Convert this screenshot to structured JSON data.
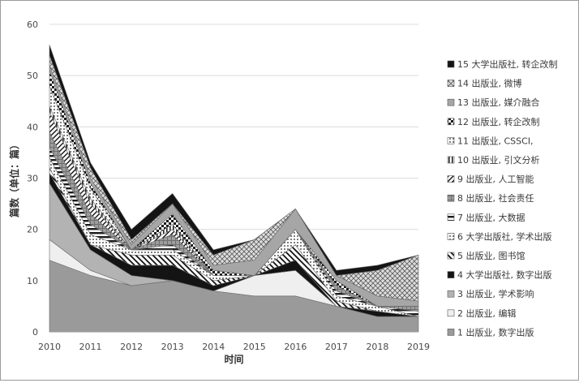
{
  "chart_data": {
    "type": "area",
    "stacked": true,
    "title": "",
    "xlabel": "时间",
    "ylabel": "篇数（单位：篇）",
    "x": [
      "2010",
      "2011",
      "2012",
      "2013",
      "2014",
      "2015",
      "2016",
      "2017",
      "2018",
      "2019"
    ],
    "ylim": [
      0,
      60
    ],
    "yticks": [
      "0",
      "10",
      "20",
      "30",
      "40",
      "50",
      "60"
    ],
    "grid": true,
    "legend_position": "right",
    "series": [
      {
        "name": "1 出版业, 数字出版",
        "color": "#9a9a9a",
        "values": [
          14,
          11,
          9,
          10,
          8,
          7,
          7,
          5,
          3,
          3
        ]
      },
      {
        "name": "2 出版业, 编辑",
        "color": "#ececec",
        "values": [
          4,
          1,
          0,
          0,
          0,
          4,
          5,
          0,
          0,
          0
        ]
      },
      {
        "name": "3 出版业, 学术影响",
        "color": "#b3b3b3",
        "values": [
          11,
          4,
          2,
          0,
          0,
          0,
          0,
          0,
          0,
          0
        ]
      },
      {
        "name": "4 大学出版社, 数字出版",
        "color": "#111111",
        "values": [
          2,
          1,
          2,
          3,
          1,
          0,
          2,
          0,
          1,
          0
        ]
      },
      {
        "name": "5 出版业, 图书馆",
        "color": "#444444",
        "values": [
          1,
          0,
          2,
          2,
          1,
          0,
          3,
          1,
          0,
          0
        ]
      },
      {
        "name": "6 大学出版社, 学术出版",
        "color": "#d5d5d5",
        "values": [
          2,
          2,
          1,
          1,
          1,
          0,
          3,
          1,
          1,
          0
        ]
      },
      {
        "name": "7 出版业, 大数据",
        "color": "#3a3a3a",
        "values": [
          2,
          2,
          0,
          1,
          0,
          0,
          0,
          1,
          0,
          1
        ]
      },
      {
        "name": "8 出版业, 社会责任",
        "color": "#5f5f5f",
        "values": [
          3,
          2,
          0,
          2,
          0,
          0,
          0,
          1,
          0,
          1
        ]
      },
      {
        "name": "9 出版业, 人工智能",
        "color": "#ededed",
        "values": [
          4,
          2,
          0,
          1,
          0,
          0,
          0,
          0,
          0,
          0
        ]
      },
      {
        "name": "10 出版业, 引文分析",
        "color": "#6a6a6a",
        "values": [
          1,
          1,
          0,
          1,
          0,
          0,
          0,
          0,
          0,
          0
        ]
      },
      {
        "name": "11 出版业, CSSCI,",
        "color": "#e6e6e6",
        "values": [
          4,
          2,
          0,
          0,
          0,
          0,
          0,
          0,
          0,
          0
        ]
      },
      {
        "name": "12 出版业, 转企改制",
        "color": "#262626",
        "values": [
          3,
          1,
          0,
          2,
          1,
          0,
          0,
          1,
          0,
          0
        ]
      },
      {
        "name": "13 出版业, 媒介融合",
        "color": "#a6a6a6",
        "values": [
          1,
          1,
          1,
          2,
          1,
          3,
          4,
          1,
          2,
          1
        ]
      },
      {
        "name": "14 出版业, 微博",
        "color": "#cfcfcf",
        "values": [
          2,
          2,
          1,
          0,
          2,
          4,
          0,
          0,
          5,
          9
        ]
      },
      {
        "name": "15 大学出版社, 转企改制",
        "color": "#151515",
        "values": [
          2,
          1,
          2,
          2,
          1,
          0,
          0,
          1,
          1,
          0
        ]
      }
    ]
  }
}
